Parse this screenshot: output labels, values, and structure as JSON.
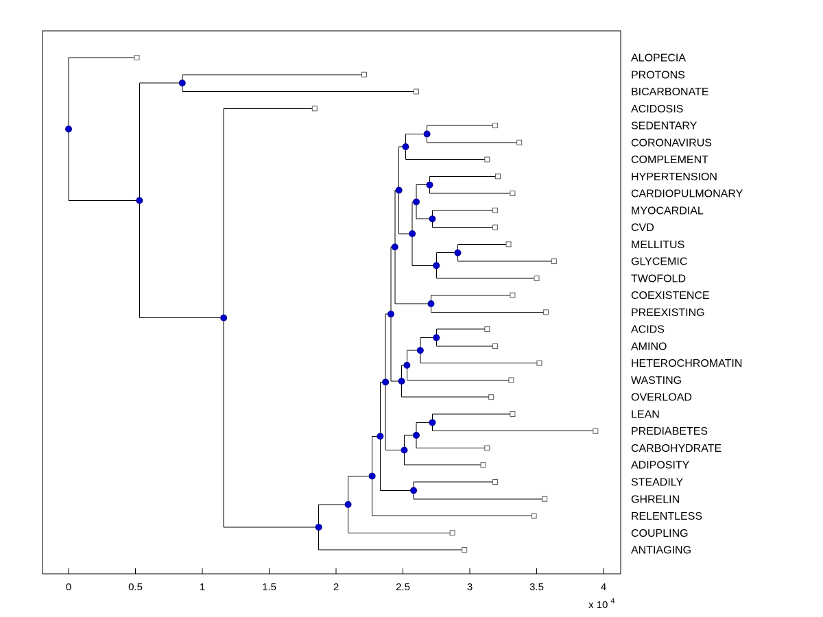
{
  "figure": {
    "background": "#ffffff",
    "box_color": "#000000",
    "line_color": "#000000",
    "font_color": "#000000",
    "leaf_marker": {
      "shape": "square",
      "fill": "#ffffff",
      "stroke": "#595959",
      "size": 7
    },
    "node_marker": {
      "shape": "circle",
      "fill": "#0000cd",
      "stroke": "#00008b",
      "radius": 4.5
    }
  },
  "chart_data": {
    "type": "dendrogram",
    "orientation": "horizontal-root-left",
    "title": "",
    "x_axis": {
      "ticks": [
        0,
        0.5,
        1,
        1.5,
        2,
        2.5,
        3,
        3.5,
        4
      ],
      "tick_labels": [
        "0",
        "0.5",
        "1",
        "1.5",
        "2",
        "2.5",
        "3",
        "3.5",
        "4"
      ],
      "exponent_label": "x 10",
      "exponent": "4",
      "units_multiplier": 10000,
      "range": [
        -0.2,
        4.13
      ],
      "grid": false
    },
    "legend": null,
    "leaf_order": [
      "ALOPECIA",
      "PROTONS",
      "BICARBONATE",
      "ACIDOSIS",
      "SEDENTARY",
      "CORONAVIRUS",
      "COMPLEMENT",
      "HYPERTENSION",
      "CARDIOPULMONARY",
      "MYOCARDIAL",
      "CVD",
      "MELLITUS",
      "GLYCEMIC",
      "TWOFOLD",
      "COEXISTENCE",
      "PREEXISTING",
      "ACIDS",
      "AMINO",
      "HETEROCHROMATIN",
      "WASTING",
      "OVERLOAD",
      "LEAN",
      "PREDIABETES",
      "CARBOHYDRATE",
      "ADIPOSITY",
      "STEADILY",
      "GHRELIN",
      "RELENTLESS",
      "COUPLING",
      "ANTIAGING"
    ],
    "tree": {
      "x": 0.0,
      "children": [
        {
          "label": "ALOPECIA",
          "x": 0.51
        },
        {
          "x": 0.53,
          "children": [
            {
              "x": 0.85,
              "children": [
                {
                  "label": "PROTONS",
                  "x": 2.21
                },
                {
                  "label": "BICARBONATE",
                  "x": 2.6
                }
              ]
            },
            {
              "x": 1.16,
              "children": [
                {
                  "label": "ACIDOSIS",
                  "x": 1.84
                },
                {
                  "x": 1.87,
                  "children": [
                    {
                      "x": 2.09,
                      "children": [
                        {
                          "x": 2.27,
                          "children": [
                            {
                              "x": 2.33,
                              "children": [
                                {
                                  "x": 2.37,
                                  "children": [
                                    {
                                      "x": 2.41,
                                      "children": [
                                        {
                                          "x": 2.44,
                                          "children": [
                                            {
                                              "x": 2.47,
                                              "children": [
                                                {
                                                  "x": 2.52,
                                                  "children": [
                                                    {
                                                      "x": 2.68,
                                                      "children": [
                                                        {
                                                          "label": "SEDENTARY",
                                                          "x": 3.19
                                                        },
                                                        {
                                                          "label": "CORONAVIRUS",
                                                          "x": 3.37
                                                        }
                                                      ]
                                                    },
                                                    {
                                                      "label": "COMPLEMENT",
                                                      "x": 3.13
                                                    }
                                                  ]
                                                },
                                                {
                                                  "x": 2.57,
                                                  "children": [
                                                    {
                                                      "x": 2.6,
                                                      "children": [
                                                        {
                                                          "x": 2.7,
                                                          "children": [
                                                            {
                                                              "label": "HYPERTENSION",
                                                              "x": 3.21
                                                            },
                                                            {
                                                              "label": "CARDIOPULMONARY",
                                                              "x": 3.32
                                                            }
                                                          ]
                                                        },
                                                        {
                                                          "x": 2.72,
                                                          "children": [
                                                            {
                                                              "label": "MYOCARDIAL",
                                                              "x": 3.19
                                                            },
                                                            {
                                                              "label": "CVD",
                                                              "x": 3.19
                                                            }
                                                          ]
                                                        }
                                                      ]
                                                    },
                                                    {
                                                      "x": 2.75,
                                                      "children": [
                                                        {
                                                          "x": 2.91,
                                                          "children": [
                                                            {
                                                              "label": "MELLITUS",
                                                              "x": 3.29
                                                            },
                                                            {
                                                              "label": "GLYCEMIC",
                                                              "x": 3.63
                                                            }
                                                          ]
                                                        },
                                                        {
                                                          "label": "TWOFOLD",
                                                          "x": 3.5
                                                        }
                                                      ]
                                                    }
                                                  ]
                                                }
                                              ]
                                            },
                                            {
                                              "x": 2.71,
                                              "children": [
                                                {
                                                  "label": "COEXISTENCE",
                                                  "x": 3.32
                                                },
                                                {
                                                  "label": "PREEXISTING",
                                                  "x": 3.57
                                                }
                                              ]
                                            }
                                          ]
                                        },
                                        {
                                          "x": 2.49,
                                          "children": [
                                            {
                                              "x": 2.53,
                                              "children": [
                                                {
                                                  "x": 2.63,
                                                  "children": [
                                                    {
                                                      "x": 2.75,
                                                      "children": [
                                                        {
                                                          "label": "ACIDS",
                                                          "x": 3.13
                                                        },
                                                        {
                                                          "label": "AMINO",
                                                          "x": 3.19
                                                        }
                                                      ]
                                                    },
                                                    {
                                                      "label": "HETEROCHROMATIN",
                                                      "x": 3.52
                                                    }
                                                  ]
                                                },
                                                {
                                                  "label": "WASTING",
                                                  "x": 3.31
                                                }
                                              ]
                                            },
                                            {
                                              "label": "OVERLOAD",
                                              "x": 3.16
                                            }
                                          ]
                                        }
                                      ]
                                    },
                                    {
                                      "x": 2.51,
                                      "children": [
                                        {
                                          "x": 2.6,
                                          "children": [
                                            {
                                              "x": 2.72,
                                              "children": [
                                                {
                                                  "label": "LEAN",
                                                  "x": 3.32
                                                },
                                                {
                                                  "label": "PREDIABETES",
                                                  "x": 3.94
                                                }
                                              ]
                                            },
                                            {
                                              "label": "CARBOHYDRATE",
                                              "x": 3.13
                                            }
                                          ]
                                        },
                                        {
                                          "label": "ADIPOSITY",
                                          "x": 3.1
                                        }
                                      ]
                                    }
                                  ]
                                },
                                {
                                  "x": 2.58,
                                  "children": [
                                    {
                                      "label": "STEADILY",
                                      "x": 3.19
                                    },
                                    {
                                      "label": "GHRELIN",
                                      "x": 3.56
                                    }
                                  ]
                                }
                              ]
                            },
                            {
                              "label": "RELENTLESS",
                              "x": 3.48
                            }
                          ]
                        },
                        {
                          "label": "COUPLING",
                          "x": 2.87
                        }
                      ]
                    },
                    {
                      "label": "ANTIAGING",
                      "x": 2.96
                    }
                  ]
                }
              ]
            }
          ]
        }
      ]
    }
  }
}
